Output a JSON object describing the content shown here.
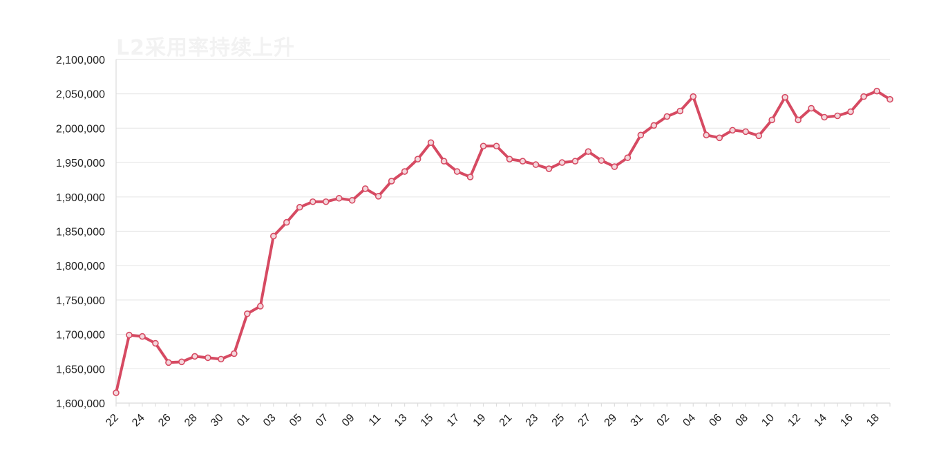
{
  "chart_data": {
    "type": "line",
    "title": "L2采用率持续上升",
    "xlabel": "",
    "ylabel": "",
    "ylim": [
      1600000,
      2100000
    ],
    "y_ticks": [
      1600000,
      1650000,
      1700000,
      1750000,
      1800000,
      1850000,
      1900000,
      1950000,
      2000000,
      2050000,
      2100000
    ],
    "y_tick_labels": [
      "1,600,000",
      "1,650,000",
      "1,700,000",
      "1,750,000",
      "1,800,000",
      "1,850,000",
      "1,900,000",
      "1,950,000",
      "2,000,000",
      "2,050,000",
      "2,100,000"
    ],
    "x_tick_labels": [
      "22",
      "24",
      "26",
      "28",
      "30",
      "01",
      "03",
      "05",
      "07",
      "09",
      "11",
      "13",
      "15",
      "17",
      "19",
      "21",
      "23",
      "25",
      "27",
      "29",
      "31",
      "02",
      "04",
      "06",
      "08",
      "10",
      "12",
      "14",
      "16",
      "18"
    ],
    "x": [
      "22",
      "23",
      "24",
      "25",
      "26",
      "27",
      "28",
      "29",
      "30",
      "31",
      "01",
      "02",
      "03",
      "04",
      "05",
      "06",
      "07",
      "08",
      "09",
      "10",
      "11",
      "12",
      "13",
      "14",
      "15",
      "16",
      "17",
      "18",
      "19",
      "20",
      "21",
      "22",
      "23",
      "24",
      "25",
      "26",
      "27",
      "28",
      "29",
      "30",
      "31",
      "01",
      "02",
      "03",
      "04",
      "05",
      "06",
      "07",
      "08",
      "09",
      "10",
      "11",
      "12",
      "13",
      "14",
      "15",
      "16",
      "17",
      "18",
      "19"
    ],
    "series": [
      {
        "color": "#d64a62",
        "values": [
          1615000,
          1699000,
          1697000,
          1687000,
          1659000,
          1660000,
          1668000,
          1666000,
          1664000,
          1672000,
          1730000,
          1741000,
          1843000,
          1863000,
          1885000,
          1893000,
          1893000,
          1898000,
          1895000,
          1912000,
          1901000,
          1923000,
          1937000,
          1955000,
          1979000,
          1952000,
          1937000,
          1929000,
          1974000,
          1974000,
          1955000,
          1952000,
          1947000,
          1941000,
          1950000,
          1952000,
          1966000,
          1953000,
          1944000,
          1957000,
          1990000,
          2004000,
          2017000,
          2025000,
          2046000,
          1990000,
          1986000,
          1997000,
          1995000,
          1989000,
          2012000,
          2045000,
          2012000,
          2029000,
          2016000,
          2018000,
          2024000,
          2046000,
          2054000,
          2042000
        ]
      }
    ],
    "grid": true,
    "legend": "none"
  }
}
